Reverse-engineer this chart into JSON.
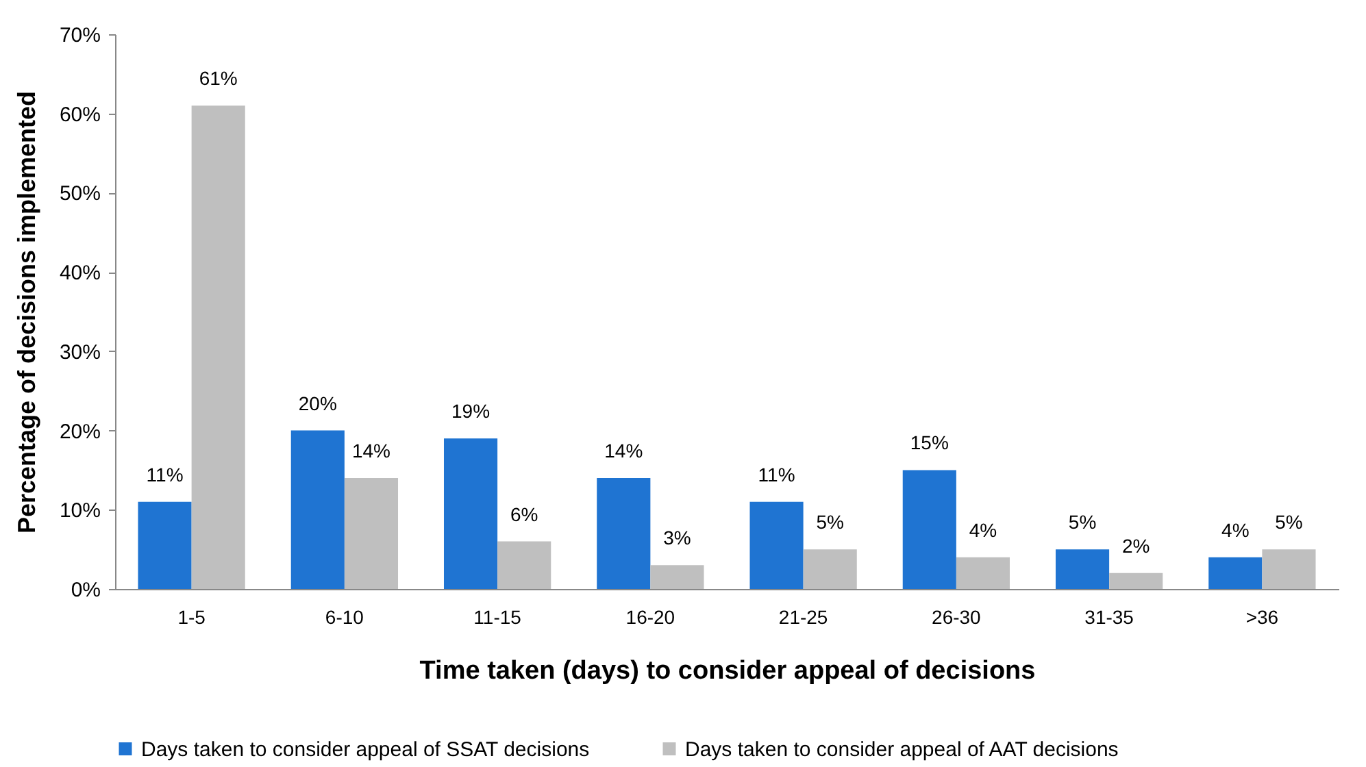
{
  "chart_data": {
    "type": "bar",
    "xlabel": "Time taken (days) to consider appeal of decisions",
    "ylabel": "Percentage of decisions implemented",
    "categories": [
      "1-5",
      "6-10",
      "11-15",
      "16-20",
      "21-25",
      "26-30",
      "31-35",
      ">36"
    ],
    "series": [
      {
        "name": "Days taken to consider appeal of SSAT decisions",
        "color": "#1f74d2",
        "values": [
          11,
          20,
          19,
          14,
          11,
          15,
          5,
          4
        ],
        "value_labels": [
          "11%",
          "20%",
          "19%",
          "14%",
          "11%",
          "15%",
          "5%",
          "4%"
        ]
      },
      {
        "name": "Days taken to consider appeal of AAT decisions",
        "color": "#bfbfbf",
        "values": [
          61,
          14,
          6,
          3,
          5,
          4,
          2,
          5
        ],
        "value_labels": [
          "61%",
          "14%",
          "6%",
          "3%",
          "5%",
          "4%",
          "2%",
          "5%"
        ]
      }
    ],
    "ylim": [
      0,
      70
    ],
    "yticks": [
      {
        "value": 0,
        "label": "0%"
      },
      {
        "value": 10,
        "label": "10%"
      },
      {
        "value": 20,
        "label": "20%"
      },
      {
        "value": 30,
        "label": "30%"
      },
      {
        "value": 40,
        "label": "40%"
      },
      {
        "value": 50,
        "label": "50%"
      },
      {
        "value": 60,
        "label": "60%"
      },
      {
        "value": 70,
        "label": "70%"
      }
    ],
    "grid": false,
    "legend": "bottom"
  }
}
